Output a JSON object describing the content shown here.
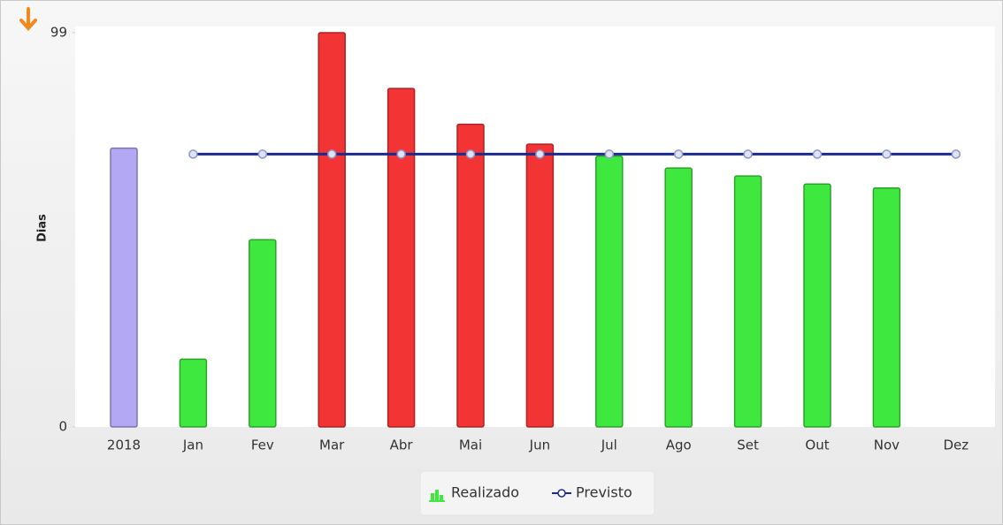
{
  "chart_data": {
    "type": "bar",
    "y_label": "Dias",
    "categories": [
      "2018",
      "Jan",
      "Fev",
      "Mar",
      "Abr",
      "Mai",
      "Jun",
      "Jul",
      "Ago",
      "Set",
      "Out",
      "Nov",
      "Dez"
    ],
    "series": [
      {
        "name": "Realizado",
        "type": "bar",
        "colors": [
          "#b3a8f4",
          "#3fe83f",
          "#3fe83f",
          "#f23434",
          "#f23434",
          "#f23434",
          "#f23434",
          "#3fe83f",
          "#3fe83f",
          "#3fe83f",
          "#3fe83f",
          "#3fe83f",
          "#3fe83f"
        ],
        "values": [
          70,
          17,
          47,
          99,
          85,
          76,
          71,
          68,
          65,
          63,
          61,
          60,
          null
        ]
      },
      {
        "name": "Previsto",
        "type": "line",
        "color": "#1b2a8e",
        "values": [
          null,
          68.5,
          68.5,
          68.5,
          68.5,
          68.5,
          68.5,
          68.5,
          68.5,
          68.5,
          68.5,
          68.5,
          68.5
        ]
      }
    ],
    "ylim": [
      0,
      99
    ],
    "yticks": [
      0,
      99
    ],
    "grid": false
  }
}
